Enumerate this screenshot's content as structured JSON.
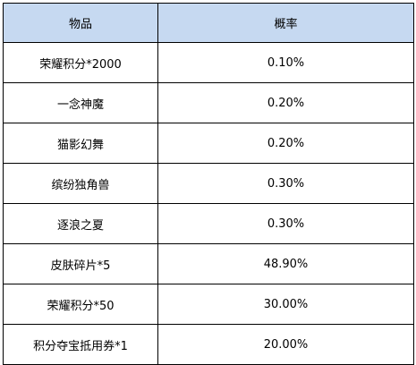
{
  "table": {
    "headers": [
      "物品",
      "概率"
    ],
    "rows": [
      [
        "荣耀积分*2000",
        "0.10%"
      ],
      [
        "一念神魔",
        "0.20%"
      ],
      [
        "猫影幻舞",
        "0.20%"
      ],
      [
        "缤纷独角兽",
        "0.30%"
      ],
      [
        "逐浪之夏",
        "0.30%"
      ],
      [
        "皮肤碎片*5",
        "48.90%"
      ],
      [
        "荣耀积分*50",
        "30.00%"
      ],
      [
        "积分夺宝抵用券*1",
        "20.00%"
      ]
    ]
  },
  "colors": {
    "header_background": "#c6d9f1",
    "border": "#000000",
    "text": "#000000"
  }
}
